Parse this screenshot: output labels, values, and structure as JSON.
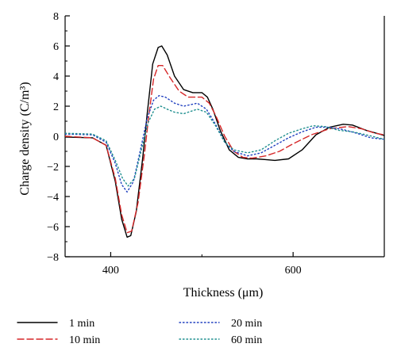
{
  "chart_data": {
    "type": "line",
    "title": "",
    "xlabel": "Thickness (μm)",
    "ylabel": "Charge density (C/m³)",
    "xlim": [
      350,
      700
    ],
    "ylim": [
      -8,
      8
    ],
    "xticks": [
      400,
      600
    ],
    "yticks": [
      -8,
      -6,
      -4,
      -2,
      0,
      2,
      4,
      6,
      8
    ],
    "grid": false,
    "legend_position": "bottom",
    "series": [
      {
        "name": "1 min",
        "color": "#000000",
        "dash": "solid",
        "points": [
          [
            350,
            -0.05
          ],
          [
            380,
            -0.1
          ],
          [
            395,
            -0.6
          ],
          [
            405,
            -3.0
          ],
          [
            412,
            -5.5
          ],
          [
            418,
            -6.7
          ],
          [
            422,
            -6.6
          ],
          [
            428,
            -5.0
          ],
          [
            435,
            -1.5
          ],
          [
            440,
            1.5
          ],
          [
            446,
            4.8
          ],
          [
            452,
            5.9
          ],
          [
            456,
            6.0
          ],
          [
            462,
            5.4
          ],
          [
            470,
            4.0
          ],
          [
            480,
            3.1
          ],
          [
            490,
            2.9
          ],
          [
            500,
            2.9
          ],
          [
            506,
            2.6
          ],
          [
            512,
            1.8
          ],
          [
            520,
            0.4
          ],
          [
            530,
            -0.9
          ],
          [
            540,
            -1.4
          ],
          [
            550,
            -1.5
          ],
          [
            560,
            -1.5
          ],
          [
            570,
            -1.55
          ],
          [
            580,
            -1.6
          ],
          [
            595,
            -1.5
          ],
          [
            610,
            -0.9
          ],
          [
            625,
            0.1
          ],
          [
            640,
            0.6
          ],
          [
            655,
            0.8
          ],
          [
            665,
            0.75
          ],
          [
            680,
            0.4
          ],
          [
            700,
            0.05
          ]
        ]
      },
      {
        "name": "10 min",
        "color": "#d62728",
        "dash": "dashed",
        "points": [
          [
            350,
            0.0
          ],
          [
            380,
            -0.1
          ],
          [
            395,
            -0.6
          ],
          [
            405,
            -2.8
          ],
          [
            412,
            -5.2
          ],
          [
            418,
            -6.4
          ],
          [
            423,
            -6.3
          ],
          [
            430,
            -4.4
          ],
          [
            437,
            -1.2
          ],
          [
            442,
            1.5
          ],
          [
            447,
            3.8
          ],
          [
            452,
            4.7
          ],
          [
            457,
            4.7
          ],
          [
            465,
            3.9
          ],
          [
            475,
            3.0
          ],
          [
            485,
            2.6
          ],
          [
            500,
            2.6
          ],
          [
            508,
            2.2
          ],
          [
            515,
            1.4
          ],
          [
            525,
            0.0
          ],
          [
            535,
            -1.0
          ],
          [
            545,
            -1.4
          ],
          [
            555,
            -1.45
          ],
          [
            570,
            -1.3
          ],
          [
            585,
            -1.0
          ],
          [
            600,
            -0.5
          ],
          [
            620,
            0.1
          ],
          [
            640,
            0.5
          ],
          [
            660,
            0.65
          ],
          [
            675,
            0.5
          ],
          [
            690,
            0.2
          ],
          [
            700,
            0.1
          ]
        ]
      },
      {
        "name": "20 min",
        "color": "#1f3fbf",
        "dash": "dotted",
        "points": [
          [
            350,
            0.15
          ],
          [
            380,
            0.1
          ],
          [
            395,
            -0.4
          ],
          [
            405,
            -1.8
          ],
          [
            412,
            -3.2
          ],
          [
            418,
            -3.7
          ],
          [
            425,
            -3.0
          ],
          [
            433,
            -0.8
          ],
          [
            440,
            1.2
          ],
          [
            447,
            2.4
          ],
          [
            453,
            2.7
          ],
          [
            460,
            2.6
          ],
          [
            470,
            2.2
          ],
          [
            480,
            2.0
          ],
          [
            495,
            2.2
          ],
          [
            505,
            1.8
          ],
          [
            515,
            0.8
          ],
          [
            525,
            -0.4
          ],
          [
            535,
            -1.0
          ],
          [
            550,
            -1.3
          ],
          [
            565,
            -1.1
          ],
          [
            580,
            -0.6
          ],
          [
            595,
            -0.1
          ],
          [
            610,
            0.3
          ],
          [
            625,
            0.6
          ],
          [
            640,
            0.6
          ],
          [
            655,
            0.45
          ],
          [
            670,
            0.2
          ],
          [
            685,
            -0.1
          ],
          [
            700,
            -0.2
          ]
        ]
      },
      {
        "name": "60 min",
        "color": "#1f8f8f",
        "dash": "dotted",
        "points": [
          [
            350,
            0.2
          ],
          [
            380,
            0.15
          ],
          [
            395,
            -0.3
          ],
          [
            405,
            -1.6
          ],
          [
            413,
            -2.8
          ],
          [
            419,
            -3.3
          ],
          [
            426,
            -2.8
          ],
          [
            434,
            -0.8
          ],
          [
            441,
            0.9
          ],
          [
            448,
            1.8
          ],
          [
            455,
            2.0
          ],
          [
            462,
            1.8
          ],
          [
            470,
            1.6
          ],
          [
            480,
            1.5
          ],
          [
            495,
            1.8
          ],
          [
            505,
            1.6
          ],
          [
            515,
            0.7
          ],
          [
            525,
            -0.4
          ],
          [
            535,
            -0.9
          ],
          [
            550,
            -1.1
          ],
          [
            565,
            -0.9
          ],
          [
            580,
            -0.3
          ],
          [
            595,
            0.2
          ],
          [
            610,
            0.5
          ],
          [
            622,
            0.7
          ],
          [
            635,
            0.65
          ],
          [
            650,
            0.4
          ],
          [
            665,
            0.3
          ],
          [
            680,
            0.1
          ],
          [
            700,
            -0.2
          ]
        ]
      }
    ]
  }
}
